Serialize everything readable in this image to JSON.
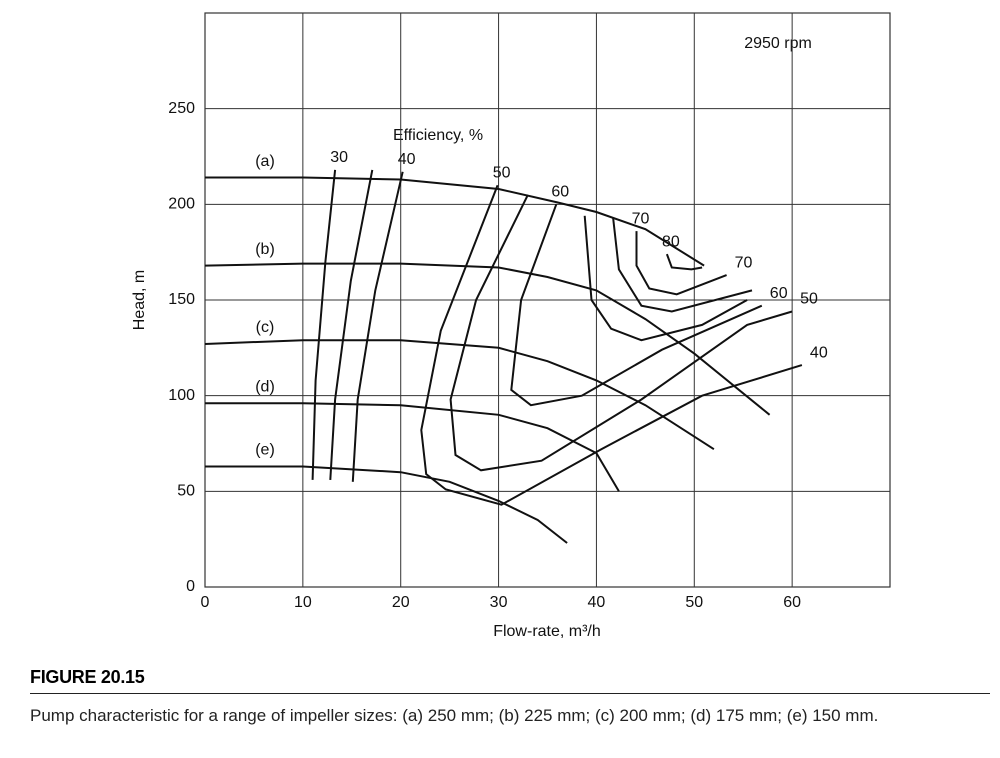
{
  "chart_data": {
    "type": "line",
    "annotations": [
      "2950 rpm",
      "Efficiency, %"
    ],
    "x_label": "Flow-rate, m³/h",
    "y_label": "Head, m",
    "xlim": [
      0,
      70
    ],
    "ylim": [
      0,
      300
    ],
    "xticks": [
      0,
      10,
      20,
      30,
      40,
      50,
      60
    ],
    "yticks": [
      0,
      50,
      100,
      150,
      200,
      250
    ],
    "grid": true,
    "color": "#111111",
    "series": [
      {
        "name": "(a)",
        "x": [
          0,
          10,
          20,
          30,
          36,
          40,
          45,
          51
        ],
        "values": [
          214,
          214,
          213,
          208,
          201,
          196,
          187,
          168
        ]
      },
      {
        "name": "(b)",
        "x": [
          0,
          10,
          20,
          30,
          35,
          40,
          45,
          50,
          57.7
        ],
        "values": [
          168,
          169,
          169,
          167,
          162,
          155,
          140,
          122,
          90
        ]
      },
      {
        "name": "(c)",
        "x": [
          0,
          10,
          20,
          30,
          35,
          40,
          45,
          52
        ],
        "values": [
          127,
          129,
          129,
          125,
          118,
          108,
          95,
          72
        ]
      },
      {
        "name": "(d)",
        "x": [
          0,
          10,
          20,
          30,
          35,
          40,
          42.3
        ],
        "values": [
          96,
          96,
          95,
          90,
          83,
          70,
          50
        ]
      },
      {
        "name": "(e)",
        "x": [
          0,
          10,
          20,
          25,
          30,
          34,
          37
        ],
        "values": [
          63,
          63,
          60,
          55,
          45,
          35,
          23
        ]
      }
    ],
    "contours": [
      {
        "label": "30",
        "x": [
          13.3,
          12.3,
          11.3,
          11
        ],
        "y": [
          218,
          170,
          108,
          56
        ]
      },
      {
        "x": [
          17.1,
          14.9,
          13.3,
          12.8
        ],
        "y": [
          218,
          160,
          98,
          56
        ]
      },
      {
        "label": "40",
        "x": [
          20.2,
          17.4,
          15.6,
          15.1
        ],
        "y": [
          217,
          155,
          98,
          55
        ]
      },
      {
        "label": "50",
        "end_label": "40",
        "x": [
          29.9,
          24.1,
          22.1,
          22.6,
          24.6,
          30.3,
          40.5,
          50.8,
          61
        ],
        "y": [
          210,
          134,
          82,
          59,
          51,
          43,
          72,
          100,
          116
        ]
      },
      {
        "end_label": "50",
        "x": [
          33,
          27.7,
          25.1,
          25.6,
          28.2,
          34.4,
          44.6,
          55.4,
          60
        ],
        "y": [
          205,
          150,
          98,
          69,
          61,
          66,
          98,
          137,
          144
        ]
      },
      {
        "label": "60",
        "end_label": "60",
        "x": [
          35.9,
          32.3,
          31.3,
          33.3,
          38.5,
          46.7,
          56.9
        ],
        "y": [
          200,
          150,
          103,
          95,
          100,
          124,
          147
        ]
      },
      {
        "x": [
          38.8,
          39.5,
          41.5,
          44.6,
          50.8,
          55.4
        ],
        "y": [
          194,
          150,
          135,
          129,
          137,
          150
        ]
      },
      {
        "x": [
          41.7,
          42.3,
          44.6,
          47.7,
          55.9
        ],
        "y": [
          193,
          166,
          147,
          144,
          155
        ]
      },
      {
        "label": "70",
        "end_label": "70",
        "x": [
          44.1,
          44.1,
          45.4,
          48.2,
          53.3
        ],
        "y": [
          186,
          168,
          156,
          153,
          163
        ]
      },
      {
        "label": "80",
        "x": [
          47.2,
          47.7,
          49.7,
          50.8
        ],
        "y": [
          174,
          167,
          166,
          167
        ]
      }
    ]
  },
  "figure": {
    "title": "FIGURE 20.15",
    "caption": "Pump characteristic for a range of impeller sizes: (a) 250 mm; (b) 225 mm; (c) 200 mm; (d) 175 mm; (e) 150 mm."
  }
}
